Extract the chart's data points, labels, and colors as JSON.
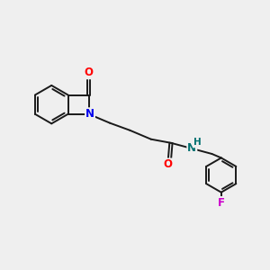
{
  "background_color": "#efefef",
  "bond_color": "#1a1a1a",
  "atom_colors": {
    "O": "#ff0000",
    "N_isoindol": "#0000ee",
    "N_amide": "#007070",
    "H": "#007070",
    "F": "#cc00cc",
    "C": "#1a1a1a"
  },
  "line_width": 1.4,
  "figsize": [
    3.0,
    3.0
  ],
  "dpi": 100,
  "xlim": [
    0,
    10
  ],
  "ylim": [
    0,
    10
  ]
}
